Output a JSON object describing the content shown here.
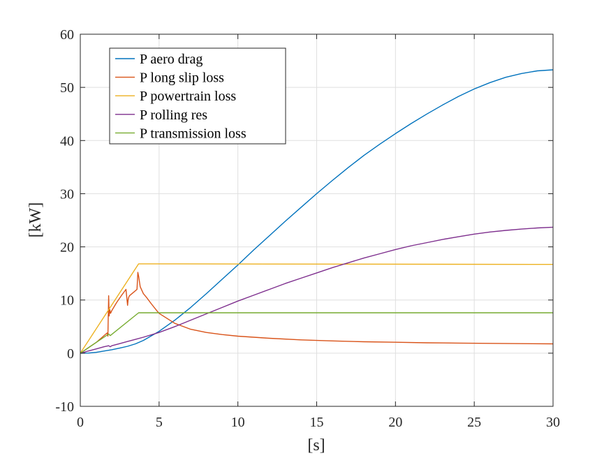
{
  "chart_data": {
    "type": "line",
    "xlabel": "[s]",
    "ylabel": "[kW]",
    "xlim": [
      0,
      30
    ],
    "ylim": [
      -10,
      60
    ],
    "xticks": [
      0,
      5,
      10,
      15,
      20,
      25,
      30
    ],
    "yticks": [
      -10,
      0,
      10,
      20,
      30,
      40,
      50,
      60
    ],
    "grid": true,
    "legend_position": "top-left",
    "series": [
      {
        "name": "P aero drag",
        "color": "#0072BD",
        "x": [
          0,
          0.5,
          1,
          1.5,
          2,
          2.5,
          3,
          3.5,
          4,
          5,
          6,
          7,
          8,
          9,
          10,
          11,
          12,
          13,
          14,
          15,
          16,
          17,
          18,
          19,
          20,
          21,
          22,
          23,
          24,
          25,
          26,
          27,
          28,
          29,
          30
        ],
        "y": [
          0,
          0.02,
          0.15,
          0.4,
          0.65,
          0.95,
          1.3,
          1.75,
          2.4,
          4.1,
          6.2,
          8.6,
          11.2,
          13.9,
          16.6,
          19.4,
          22.1,
          24.8,
          27.4,
          30.0,
          32.5,
          34.9,
          37.2,
          39.3,
          41.3,
          43.2,
          45.0,
          46.7,
          48.3,
          49.7,
          50.9,
          51.9,
          52.6,
          53.1,
          53.3
        ]
      },
      {
        "name": "P long slip loss",
        "color": "#D95319",
        "x": [
          0,
          1.0,
          1.7,
          1.75,
          1.8,
          1.83,
          1.87,
          1.92,
          2.0,
          2.3,
          2.6,
          2.9,
          3.0,
          3.03,
          3.07,
          3.12,
          3.2,
          3.4,
          3.6,
          3.65,
          3.7,
          3.8,
          4.0,
          4.2,
          4.5,
          4.8,
          5.0,
          6,
          7,
          8,
          9,
          10,
          12,
          14,
          16,
          18,
          20,
          22,
          24,
          26,
          28,
          30
        ],
        "y": [
          0,
          2.0,
          3.8,
          3.2,
          10.8,
          7.0,
          8.2,
          7.5,
          8.0,
          9.5,
          10.8,
          12.0,
          9.0,
          10.0,
          10.5,
          10.8,
          11.0,
          11.5,
          12.0,
          15.2,
          14.5,
          12.5,
          11.2,
          10.5,
          9.3,
          8.2,
          7.5,
          5.6,
          4.5,
          3.9,
          3.5,
          3.2,
          2.8,
          2.5,
          2.3,
          2.15,
          2.05,
          1.95,
          1.9,
          1.85,
          1.8,
          1.75
        ]
      },
      {
        "name": "P powertrain loss",
        "color": "#EDB120",
        "x": [
          0,
          3.7,
          30
        ],
        "y": [
          0,
          16.8,
          16.7
        ]
      },
      {
        "name": "P rolling res",
        "color": "#7E2F8E",
        "x": [
          0,
          0.5,
          1,
          1.5,
          1.8,
          1.9,
          2,
          2.5,
          3,
          3.5,
          4,
          5,
          6,
          7,
          8,
          9,
          10,
          11,
          12,
          13,
          14,
          15,
          16,
          17,
          18,
          19,
          20,
          21,
          22,
          23,
          24,
          25,
          26,
          27,
          28,
          29,
          30
        ],
        "y": [
          0,
          0.4,
          0.8,
          1.2,
          1.4,
          1.2,
          1.4,
          1.8,
          2.2,
          2.6,
          3.0,
          3.9,
          5.0,
          6.2,
          7.4,
          8.6,
          9.8,
          10.9,
          12.0,
          13.1,
          14.1,
          15.1,
          16.1,
          17.0,
          17.9,
          18.7,
          19.5,
          20.2,
          20.8,
          21.4,
          21.9,
          22.4,
          22.8,
          23.1,
          23.35,
          23.55,
          23.7
        ]
      },
      {
        "name": "P transmission loss",
        "color": "#77AC30",
        "x": [
          0,
          1.8,
          1.9,
          3.7,
          30
        ],
        "y": [
          0,
          3.6,
          3.3,
          7.6,
          7.6
        ]
      }
    ]
  }
}
